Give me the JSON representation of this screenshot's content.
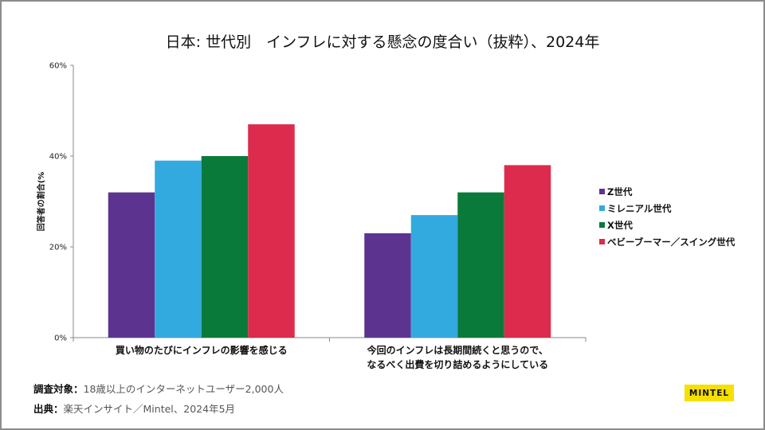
{
  "title": "日本: 世代別　インフレに対する懸念の度合い（抜粋）、2024年",
  "footer": {
    "subject_label": "調査対象：",
    "subject_value": "18歳以上のインターネットユーザー2,000人",
    "source_label": "出典：",
    "source_value": "楽天インサイト／Mintel、2024年5月"
  },
  "logo": "MINTEL",
  "colors": {
    "gen_z": "#5c3490",
    "millennial": "#33aadf",
    "gen_x": "#0a7a3a",
    "boomer": "#dc2b4c",
    "axis": "#888888"
  },
  "chart_data": {
    "type": "bar",
    "title": "日本: 世代別　インフレに対する懸念の度合い（抜粋）、2024年",
    "ylabel": "回答者の割合(%",
    "xlabel": "",
    "ylim": [
      0,
      60
    ],
    "yticks": [
      0,
      20,
      40,
      60
    ],
    "yticklabels": [
      "0%",
      "20%",
      "40%",
      "60%"
    ],
    "grid": false,
    "legend_position": "right",
    "categories": [
      [
        "買い物のたびにインフレの影響を感じる"
      ],
      [
        "今回のインフレは長期間続くと思うので、",
        "なるべく出費を切り詰めるようにしている"
      ]
    ],
    "series": [
      {
        "name": "Z世代",
        "color": "#5c3490",
        "values": [
          32,
          23
        ]
      },
      {
        "name": "ミレニアル世代",
        "color": "#33aadf",
        "values": [
          39,
          27
        ]
      },
      {
        "name": "X世代",
        "color": "#0a7a3a",
        "values": [
          40,
          32
        ]
      },
      {
        "name": "ベビーブーマー／スイング世代",
        "color": "#dc2b4c",
        "values": [
          47,
          38
        ]
      }
    ]
  }
}
